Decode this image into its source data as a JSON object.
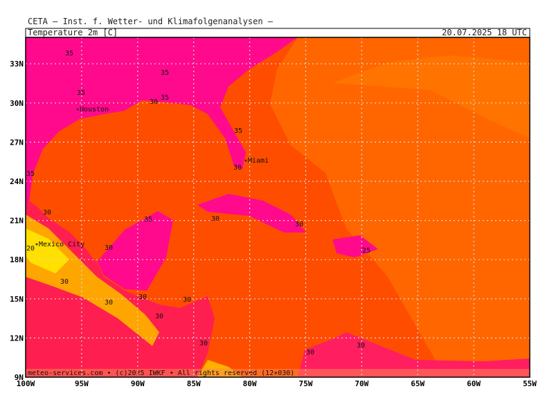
{
  "header": {
    "source": "CETA – Inst. f. Wetter- und Klimafolgenanalysen –",
    "title": "Temperature 2m [C]",
    "valid_time": "20.07.2025 18 UTC"
  },
  "axes": {
    "longitudes": [
      "100W",
      "95W",
      "90W",
      "85W",
      "80W",
      "75W",
      "70W",
      "65W",
      "60W",
      "55W"
    ],
    "latitudes": [
      "9N",
      "12N",
      "15N",
      "18N",
      "21N",
      "24N",
      "27N",
      "30N",
      "33N"
    ]
  },
  "cities": [
    "Houston",
    "Miami",
    "Mexico City"
  ],
  "contour_labels": [
    "35",
    "35",
    "35",
    "30",
    "35",
    "35",
    "30",
    "35",
    "30",
    "35",
    "30",
    "30",
    "20",
    "30",
    "25",
    "30",
    "30",
    "30",
    "30",
    "30",
    "30",
    "30",
    "30"
  ],
  "footer": "meteo-services.com • (c)2025 IWKF • All rights reserved (12+030)"
}
